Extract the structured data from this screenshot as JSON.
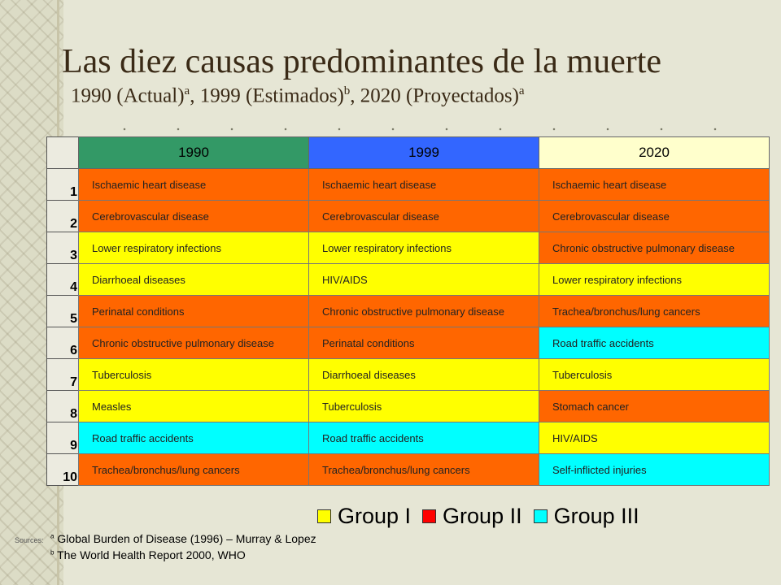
{
  "slide": {
    "title": "Las diez causas predominantes de la muerte",
    "subtitle": {
      "p1": "1990 (Actual)",
      "s1": "a",
      "p2": ", 1999 (Estimados)",
      "s2": "b",
      "p3": ", 2020 (Proyectados)",
      "s3": "a"
    }
  },
  "table": {
    "years": [
      {
        "label": "1990",
        "color": "#339966"
      },
      {
        "label": "1999",
        "color": "#3366ff"
      },
      {
        "label": "2020",
        "color": "#ffffcc"
      }
    ],
    "ranks": [
      "1",
      "2",
      "3",
      "4",
      "5",
      "6",
      "7",
      "8",
      "9",
      "10"
    ],
    "rows": [
      [
        {
          "t": "Ischaemic heart disease",
          "g": "g2"
        },
        {
          "t": "Ischaemic heart disease",
          "g": "g2"
        },
        {
          "t": "Ischaemic heart disease",
          "g": "g2"
        }
      ],
      [
        {
          "t": "Cerebrovascular disease",
          "g": "g2"
        },
        {
          "t": "Cerebrovascular disease",
          "g": "g2"
        },
        {
          "t": "Cerebrovascular disease",
          "g": "g2"
        }
      ],
      [
        {
          "t": "Lower respiratory infections",
          "g": "g1"
        },
        {
          "t": "Lower respiratory infections",
          "g": "g1"
        },
        {
          "t": "Chronic obstructive pulmonary disease",
          "g": "g2"
        }
      ],
      [
        {
          "t": "Diarrhoeal diseases",
          "g": "g1"
        },
        {
          "t": "HIV/AIDS",
          "g": "g1"
        },
        {
          "t": "Lower respiratory infections",
          "g": "g1"
        }
      ],
      [
        {
          "t": "Perinatal conditions",
          "g": "g2"
        },
        {
          "t": "Chronic obstructive pulmonary disease",
          "g": "g2"
        },
        {
          "t": "Trachea/bronchus/lung cancers",
          "g": "g2"
        }
      ],
      [
        {
          "t": "Chronic obstructive pulmonary disease",
          "g": "g2"
        },
        {
          "t": "Perinatal conditions",
          "g": "g2"
        },
        {
          "t": "Road traffic accidents",
          "g": "g3"
        }
      ],
      [
        {
          "t": "Tuberculosis",
          "g": "g1"
        },
        {
          "t": "Diarrhoeal diseases",
          "g": "g1"
        },
        {
          "t": "Tuberculosis",
          "g": "g1"
        }
      ],
      [
        {
          "t": "Measles",
          "g": "g1"
        },
        {
          "t": "Tuberculosis",
          "g": "g1"
        },
        {
          "t": "Stomach cancer",
          "g": "g2"
        }
      ],
      [
        {
          "t": "Road traffic accidents",
          "g": "g3"
        },
        {
          "t": "Road traffic accidents",
          "g": "g3"
        },
        {
          "t": "HIV/AIDS",
          "g": "g1"
        }
      ],
      [
        {
          "t": "Trachea/bronchus/lung cancers",
          "g": "g2"
        },
        {
          "t": "Trachea/bronchus/lung cancers",
          "g": "g2"
        },
        {
          "t": "Self-inflicted injuries",
          "g": "g3"
        }
      ]
    ]
  },
  "legend": [
    {
      "label": "Group I",
      "color": "#ffff00"
    },
    {
      "label": "Group II",
      "color": "#ff0000"
    },
    {
      "label": "Group III",
      "color": "#00ffff"
    }
  ],
  "sources": {
    "label": "Sources:",
    "a_mark": "a",
    "a_text": " Global Burden of Disease (1996) – Murray & Lopez",
    "b_mark": "b",
    "b_text": " The World Health Report 2000, WHO"
  }
}
